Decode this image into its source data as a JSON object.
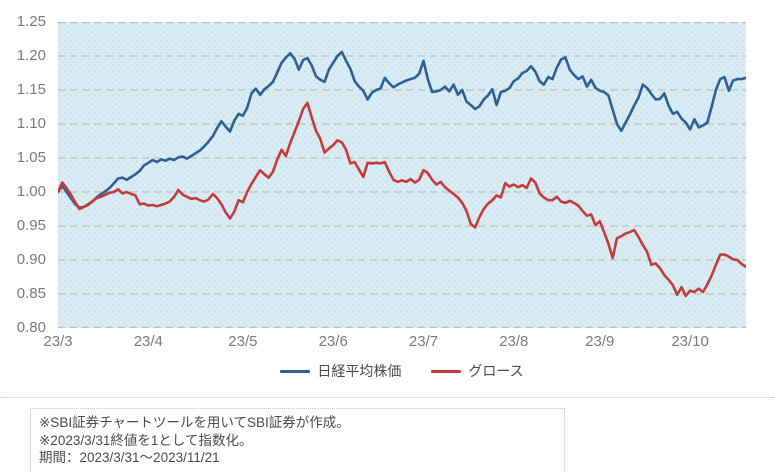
{
  "colors": {
    "nikkei_line": "#2e6095",
    "growth_line": "#c33c3c",
    "plot_background": "#d9ecf3",
    "plot_dots": "#b4cedd",
    "gridline": "#b9b5ab",
    "axis_text": "#7a7a7a",
    "note_text": "#4a4a4a"
  },
  "chart_data": {
    "type": "line",
    "title": "",
    "n_points": 161,
    "y_axis": {
      "min": 0.8,
      "max": 1.25,
      "step": 0.05,
      "grid": "dashed"
    },
    "x_ticks": {
      "labels": [
        "23/3",
        "23/4",
        "23/5",
        "23/6",
        "23/7",
        "23/8",
        "23/9",
        "23/10"
      ],
      "positions": [
        0,
        21,
        43,
        64,
        85,
        106,
        126,
        147
      ]
    },
    "legend_position": "bottom-center",
    "series": [
      {
        "name": "日経平均株価",
        "color": "#2e6095",
        "values": [
          1.0,
          1.009,
          1.0,
          0.991,
          0.982,
          0.977,
          0.978,
          0.981,
          0.986,
          0.992,
          0.997,
          1.001,
          1.006,
          1.013,
          1.02,
          1.021,
          1.018,
          1.022,
          1.026,
          1.031,
          1.039,
          1.043,
          1.047,
          1.044,
          1.048,
          1.046,
          1.049,
          1.047,
          1.051,
          1.052,
          1.049,
          1.053,
          1.057,
          1.061,
          1.067,
          1.074,
          1.082,
          1.094,
          1.104,
          1.096,
          1.089,
          1.105,
          1.115,
          1.112,
          1.124,
          1.145,
          1.152,
          1.143,
          1.151,
          1.156,
          1.162,
          1.176,
          1.19,
          1.198,
          1.204,
          1.196,
          1.18,
          1.194,
          1.197,
          1.186,
          1.17,
          1.165,
          1.162,
          1.18,
          1.19,
          1.2,
          1.206,
          1.193,
          1.181,
          1.163,
          1.155,
          1.149,
          1.136,
          1.146,
          1.15,
          1.152,
          1.168,
          1.16,
          1.154,
          1.158,
          1.161,
          1.164,
          1.166,
          1.168,
          1.174,
          1.193,
          1.166,
          1.147,
          1.148,
          1.15,
          1.155,
          1.148,
          1.158,
          1.143,
          1.15,
          1.133,
          1.128,
          1.122,
          1.126,
          1.136,
          1.142,
          1.151,
          1.128,
          1.147,
          1.149,
          1.153,
          1.163,
          1.167,
          1.175,
          1.178,
          1.185,
          1.177,
          1.163,
          1.158,
          1.169,
          1.166,
          1.183,
          1.195,
          1.198,
          1.18,
          1.172,
          1.166,
          1.17,
          1.155,
          1.165,
          1.153,
          1.149,
          1.147,
          1.142,
          1.121,
          1.1,
          1.09,
          1.102,
          1.114,
          1.127,
          1.139,
          1.158,
          1.153,
          1.144,
          1.136,
          1.137,
          1.145,
          1.127,
          1.115,
          1.118,
          1.108,
          1.102,
          1.092,
          1.107,
          1.095,
          1.098,
          1.102,
          1.125,
          1.15,
          1.166,
          1.169,
          1.149,
          1.164,
          1.166,
          1.166,
          1.168
        ]
      },
      {
        "name": "グロース",
        "color": "#c33c3c",
        "values": [
          1.0,
          1.014,
          1.006,
          0.996,
          0.985,
          0.975,
          0.978,
          0.982,
          0.986,
          0.991,
          0.993,
          0.996,
          0.999,
          1.0,
          1.004,
          0.998,
          1.0,
          0.997,
          0.995,
          0.982,
          0.983,
          0.98,
          0.981,
          0.979,
          0.981,
          0.983,
          0.986,
          0.993,
          1.003,
          0.996,
          0.993,
          0.99,
          0.991,
          0.988,
          0.986,
          0.989,
          0.997,
          0.991,
          0.982,
          0.97,
          0.961,
          0.971,
          0.988,
          0.985,
          1.0,
          1.012,
          1.022,
          1.032,
          1.026,
          1.021,
          1.03,
          1.048,
          1.062,
          1.053,
          1.072,
          1.088,
          1.104,
          1.122,
          1.131,
          1.11,
          1.09,
          1.078,
          1.058,
          1.064,
          1.069,
          1.076,
          1.073,
          1.062,
          1.042,
          1.044,
          1.033,
          1.022,
          1.043,
          1.042,
          1.043,
          1.042,
          1.044,
          1.03,
          1.018,
          1.015,
          1.017,
          1.015,
          1.019,
          1.014,
          1.018,
          1.032,
          1.028,
          1.018,
          1.011,
          1.015,
          1.007,
          1.002,
          0.997,
          0.992,
          0.984,
          0.972,
          0.953,
          0.948,
          0.963,
          0.975,
          0.983,
          0.988,
          0.995,
          0.992,
          1.013,
          1.008,
          1.011,
          1.007,
          1.01,
          1.006,
          1.02,
          1.014,
          0.998,
          0.992,
          0.988,
          0.988,
          0.993,
          0.986,
          0.984,
          0.987,
          0.984,
          0.98,
          0.972,
          0.965,
          0.967,
          0.951,
          0.957,
          0.941,
          0.924,
          0.903,
          0.932,
          0.935,
          0.939,
          0.941,
          0.944,
          0.934,
          0.922,
          0.912,
          0.893,
          0.895,
          0.888,
          0.878,
          0.871,
          0.863,
          0.849,
          0.86,
          0.847,
          0.855,
          0.853,
          0.858,
          0.853,
          0.864,
          0.877,
          0.893,
          0.908,
          0.908,
          0.905,
          0.901,
          0.9,
          0.894,
          0.89
        ]
      }
    ]
  },
  "legend": {
    "items": [
      {
        "label": "日経平均株価",
        "color": "#2e6095"
      },
      {
        "label": "グロース",
        "color": "#c33c3c"
      }
    ]
  },
  "notes": {
    "line1": "※SBI証券チャートツールを用いてSBI証券が作成。",
    "line2": "※2023/3/31終値を1として指数化。",
    "line3": "期間：2023/3/31～2023/11/21"
  }
}
